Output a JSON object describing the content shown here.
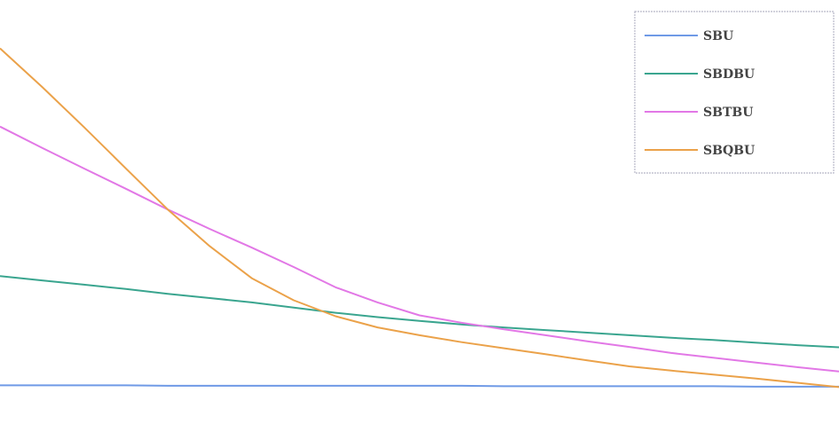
{
  "chart_data": {
    "type": "line",
    "title": "",
    "xlabel": "",
    "ylabel": "",
    "xlim": [
      0,
      1
    ],
    "ylim": [
      0,
      1
    ],
    "grid": false,
    "legend_placement": "top-right",
    "x": [
      0,
      0.05,
      0.1,
      0.15,
      0.2,
      0.25,
      0.3,
      0.35,
      0.4,
      0.45,
      0.5,
      0.55,
      0.6,
      0.65,
      0.7,
      0.75,
      0.8,
      0.85,
      0.9,
      0.95,
      1.0
    ],
    "series": [
      {
        "name": "SBU",
        "color": "#6f9ae6",
        "values": [
          0.108,
          0.108,
          0.108,
          0.108,
          0.107,
          0.107,
          0.107,
          0.107,
          0.107,
          0.107,
          0.107,
          0.107,
          0.106,
          0.106,
          0.106,
          0.106,
          0.106,
          0.106,
          0.105,
          0.105,
          0.105
        ]
      },
      {
        "name": "SBDBU",
        "color": "#3aa58f",
        "values": [
          0.361,
          0.351,
          0.341,
          0.331,
          0.32,
          0.31,
          0.3,
          0.288,
          0.276,
          0.266,
          0.257,
          0.249,
          0.242,
          0.236,
          0.23,
          0.224,
          0.218,
          0.213,
          0.207,
          0.201,
          0.196
        ]
      },
      {
        "name": "SBTBU",
        "color": "#e278e6",
        "values": [
          0.707,
          0.658,
          0.61,
          0.563,
          0.515,
          0.47,
          0.427,
          0.382,
          0.335,
          0.3,
          0.27,
          0.253,
          0.238,
          0.224,
          0.21,
          0.197,
          0.183,
          0.172,
          0.161,
          0.15,
          0.14
        ]
      },
      {
        "name": "SBQBU",
        "color": "#eba24a",
        "values": [
          0.888,
          0.799,
          0.706,
          0.61,
          0.515,
          0.43,
          0.356,
          0.305,
          0.268,
          0.242,
          0.224,
          0.208,
          0.194,
          0.18,
          0.166,
          0.152,
          0.142,
          0.133,
          0.124,
          0.114,
          0.104
        ]
      }
    ]
  }
}
